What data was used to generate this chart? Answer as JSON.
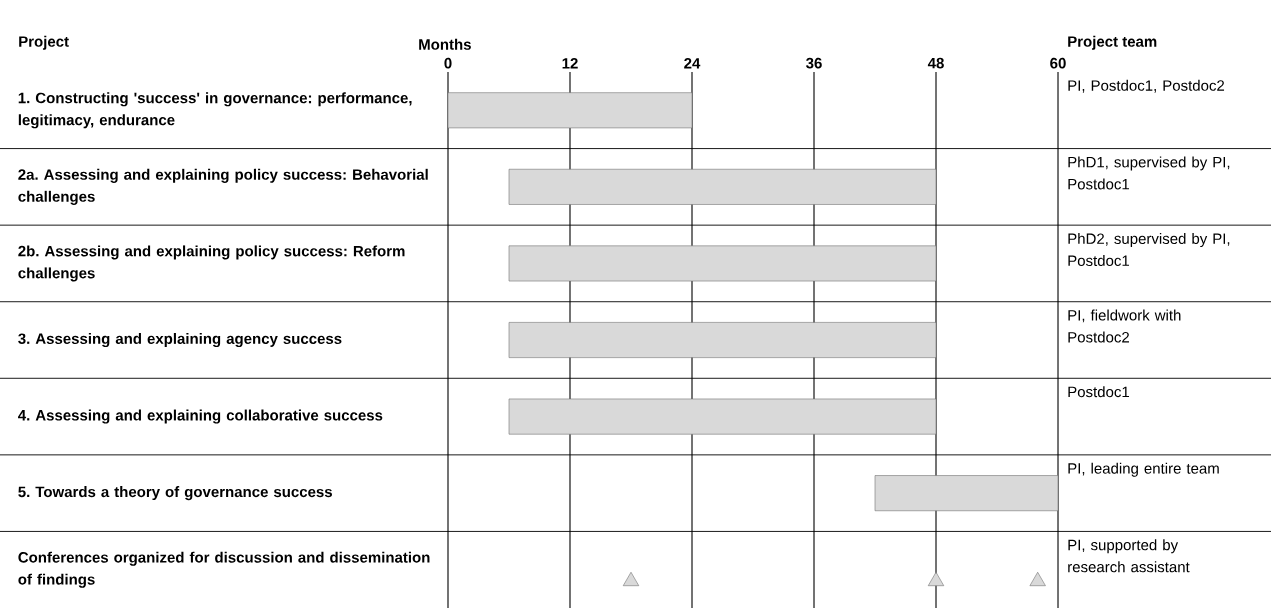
{
  "chart_data": {
    "type": "bar",
    "orientation": "horizontal",
    "xlabel": "Months",
    "ylabel": "Project",
    "y2label": "Project team",
    "categories": [
      "1. Constructing 'success' in governance: performance, legitimacy, endurance",
      "2a. Assessing and explaining policy success: Behavorial challenges",
      "2b. Assessing and explaining policy success: Reform challenges",
      "3. Assessing and explaining agency success",
      "4. Assessing and explaining collaborative success",
      "5. Towards a theory of governance success",
      "Conferences organized for discussion and dissemination of findings"
    ],
    "series": [
      {
        "type": "bar",
        "color": "#d9d9d9",
        "base": [
          0,
          6,
          6,
          6,
          6,
          42,
          null
        ],
        "values": [
          24,
          42,
          42,
          42,
          42,
          18,
          null
        ]
      },
      {
        "type": "scatter",
        "color": "#d9d9d9",
        "marker": "triangle",
        "x": [
          "Conferences organized for discussion and dissemination of findings",
          "Conferences organized for discussion and dissemination of findings",
          "Conferences organized for discussion and dissemination of findings"
        ],
        "values": [
          18,
          48,
          58
        ]
      }
    ],
    "annotations": [
      "PI, Postdoc1, Postdoc2",
      "PhD1, supervised by PI, Postdoc1",
      "PhD2, supervised by PI, Postdoc1",
      "PI, fieldwork with Postdoc2",
      "Postdoc1",
      "PI, leading entire team",
      "PI, supported by research assistant"
    ],
    "xlim": [
      0,
      60
    ],
    "xticks": [
      0,
      12,
      24,
      36,
      48,
      60
    ],
    "grid": "x"
  }
}
